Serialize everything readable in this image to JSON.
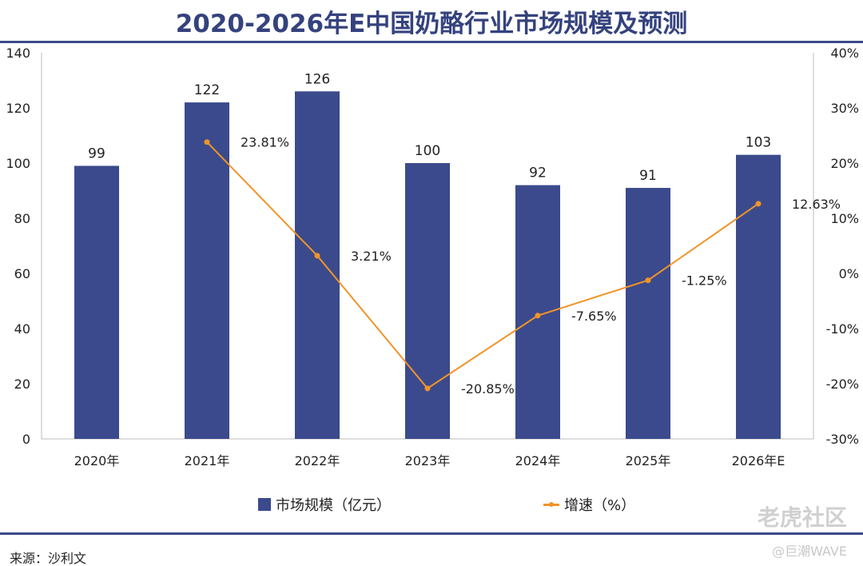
{
  "title": "2020-2026年E中国奶酪行业市场规模及预测",
  "source": "来源：沙利文",
  "watermark": {
    "main": "老虎社区",
    "sub": "@巨潮WAVE"
  },
  "colors": {
    "bar": "#3b4a8c",
    "line": "#f0942a",
    "rule": "#3c4a8a"
  },
  "chart_data": {
    "type": "bar+line",
    "title": "2020-2026年E中国奶酪行业市场规模及预测",
    "categories": [
      "2020年",
      "2021年",
      "2022年",
      "2023年",
      "2024年",
      "2025年",
      "2026年E"
    ],
    "series": [
      {
        "name": "市场规模（亿元）",
        "type": "bar",
        "axis": "left",
        "values": [
          99,
          122,
          126,
          100,
          92,
          91,
          103
        ],
        "labels": [
          "99",
          "122",
          "126",
          "100",
          "92",
          "91",
          "103"
        ]
      },
      {
        "name": "增速（%）",
        "type": "line",
        "axis": "right",
        "values": [
          null,
          23.81,
          3.21,
          -20.85,
          -7.65,
          -1.25,
          12.63
        ],
        "labels": [
          "",
          "23.81%",
          "3.21%",
          "-20.85%",
          "-7.65%",
          "-1.25%",
          "12.63%"
        ]
      }
    ],
    "left_axis": {
      "range": [
        0,
        140
      ],
      "ticks": [
        "0",
        "20",
        "40",
        "60",
        "80",
        "100",
        "120",
        "140"
      ]
    },
    "right_axis": {
      "range": [
        -30,
        40
      ],
      "ticks": [
        "-30%",
        "-20%",
        "-10%",
        "0%",
        "10%",
        "20%",
        "30%",
        "40%"
      ]
    },
    "grid": false,
    "legend": "bottom"
  }
}
